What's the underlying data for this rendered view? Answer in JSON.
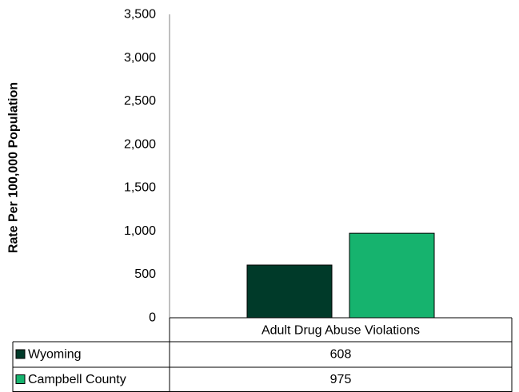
{
  "chart_data": {
    "type": "bar",
    "ylabel": "Rate Per 100,000 Population",
    "ylim": [
      0,
      3500
    ],
    "yticks": [
      0,
      500,
      1000,
      1500,
      2000,
      2500,
      3000,
      3500
    ],
    "ytick_labels": [
      "0",
      "500",
      "1,000",
      "1,500",
      "2,000",
      "2,500",
      "3,000",
      "3,500"
    ],
    "categories": [
      "Adult Drug Abuse Violations"
    ],
    "series": [
      {
        "name": "Wyoming",
        "values": [
          608
        ],
        "value_labels": [
          "608"
        ],
        "color": "#003a29"
      },
      {
        "name": "Campbell County",
        "values": [
          975
        ],
        "value_labels": [
          "975"
        ],
        "color": "#16b36e"
      }
    ],
    "legend": "data-table-left",
    "grid": false
  }
}
